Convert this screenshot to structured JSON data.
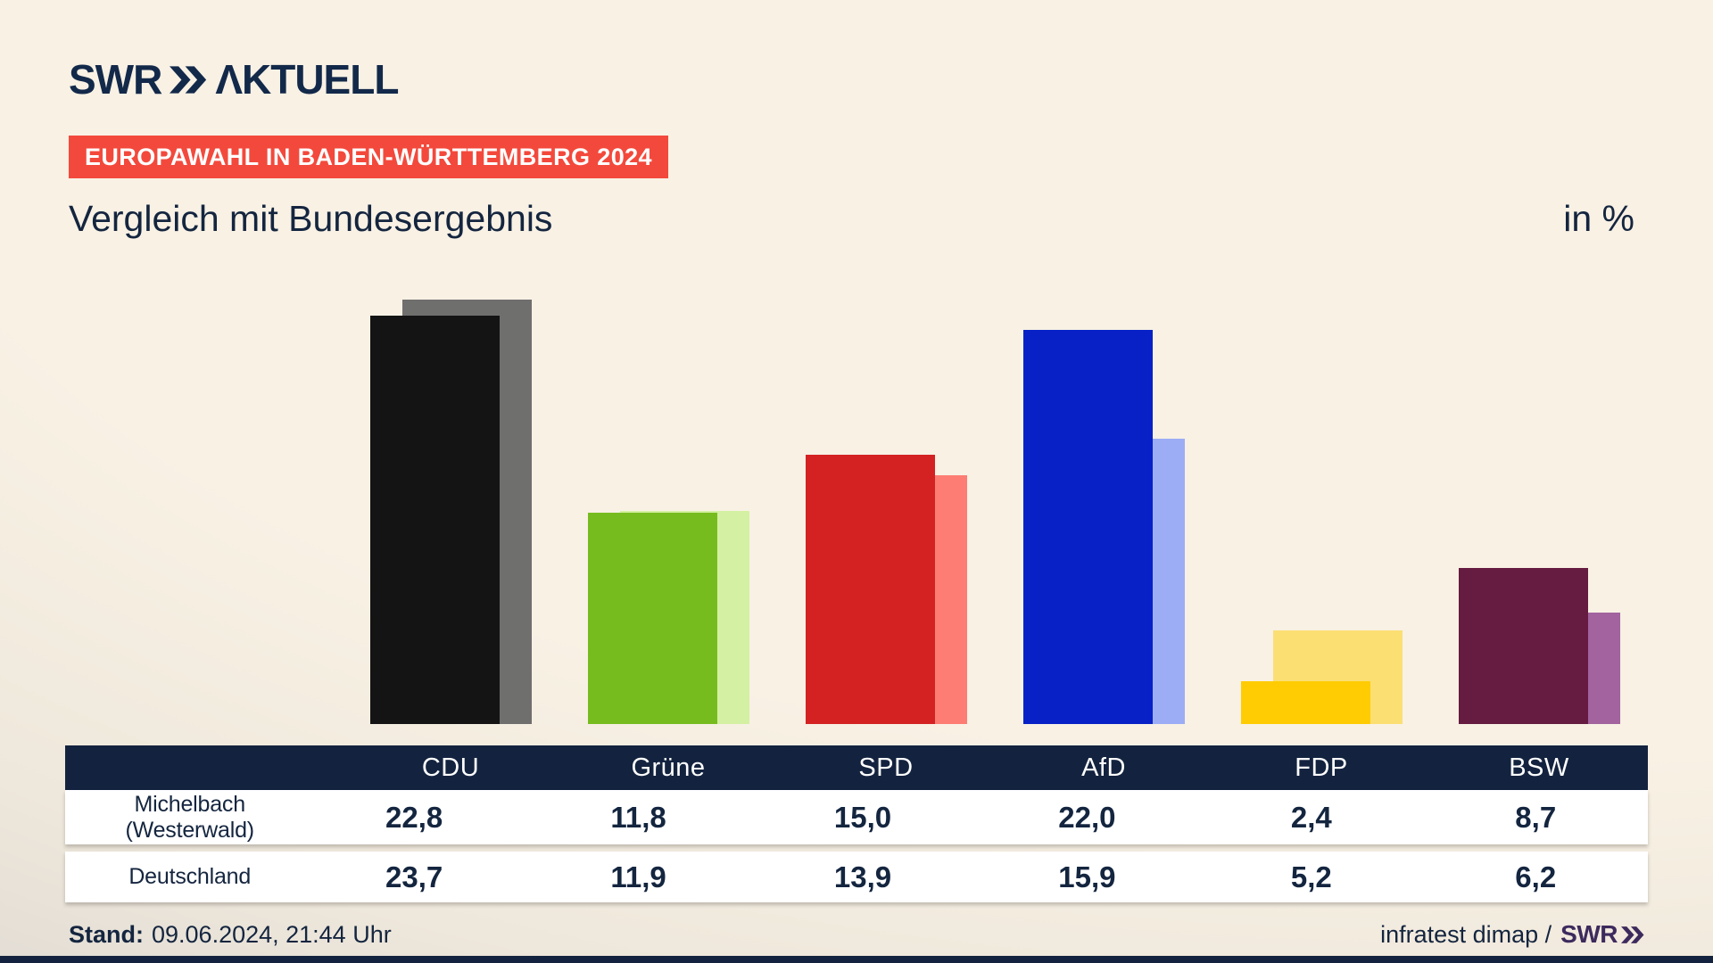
{
  "header": {
    "logo_brand": "SWR",
    "logo_word": "ΛKTUELL",
    "banner": "EUROPAWAHL IN BADEN-WÜRTTEMBERG 2024",
    "title": "Vergleich mit Bundesergebnis",
    "unit_label": "in %"
  },
  "chart_data": {
    "type": "bar",
    "title": "Vergleich mit Bundesergebnis",
    "unit": "in %",
    "categories": [
      "CDU",
      "Grüne",
      "SPD",
      "AfD",
      "FDP",
      "BSW"
    ],
    "series": [
      {
        "name": "Michelbach (Westerwald)",
        "values": [
          22.8,
          11.8,
          15.0,
          22.0,
          2.4,
          8.7
        ],
        "colors": [
          "#141414",
          "#77bc1f",
          "#d42222",
          "#0721c6",
          "#ffcc03",
          "#661b40"
        ]
      },
      {
        "name": "Deutschland",
        "values": [
          23.7,
          11.9,
          13.9,
          15.9,
          5.2,
          6.2
        ],
        "colors": [
          "#6f6f6e",
          "#d4f0a2",
          "#fd7d74",
          "#9dadf5",
          "#fbdf73",
          "#a2639f"
        ]
      }
    ],
    "ylim": [
      0,
      24
    ],
    "grid": false,
    "legend_position": "table-below",
    "value_format": "decimal-comma"
  },
  "table": {
    "columns": [
      "CDU",
      "Grüne",
      "SPD",
      "AfD",
      "FDP",
      "BSW"
    ],
    "rows": [
      {
        "label": "Michelbach (Westerwald)",
        "values": [
          "22,8",
          "11,8",
          "15,0",
          "22,0",
          "2,4",
          "8,7"
        ]
      },
      {
        "label": "Deutschland",
        "values": [
          "23,7",
          "11,9",
          "13,9",
          "15,9",
          "5,2",
          "6,2"
        ]
      }
    ]
  },
  "footer": {
    "stand_label": "Stand:",
    "stand_value": "09.06.2024, 21:44 Uhr",
    "credit": "infratest dimap /",
    "credit_brand": "SWR"
  },
  "colors": {
    "accent_red": "#f3493c",
    "navy": "#13233f",
    "text_navy": "#14253f",
    "brand_purple": "#3d2a5d",
    "background_cream": "#f8f1e4"
  }
}
